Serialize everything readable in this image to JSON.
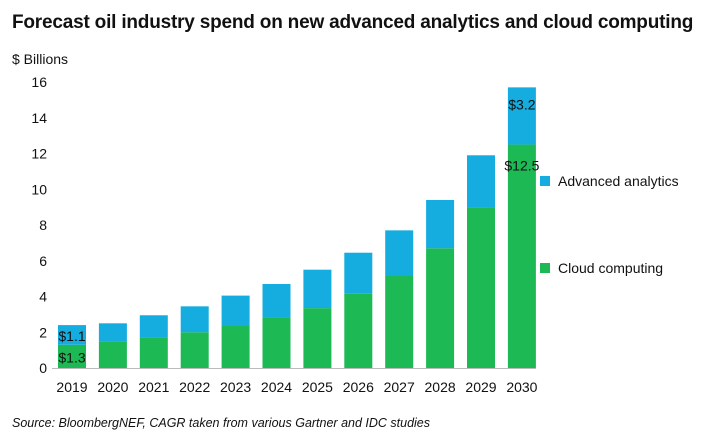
{
  "title": "Forecast oil industry spend on new advanced analytics and cloud computing",
  "source": "Source: BloombergNEF, CAGR taken from various Gartner and IDC studies",
  "colors": {
    "cloud": "#1db954",
    "analytics": "#15acdf"
  },
  "chart_data": {
    "type": "bar",
    "stacked": true,
    "title": "Forecast oil industry spend on new advanced analytics and cloud computing",
    "ylabel": "$ Billions",
    "xlabel": "",
    "ylim": [
      0,
      16
    ],
    "yticks": [
      0,
      2,
      4,
      6,
      8,
      10,
      12,
      14,
      16
    ],
    "categories": [
      "2019",
      "2020",
      "2021",
      "2022",
      "2023",
      "2024",
      "2025",
      "2026",
      "2027",
      "2028",
      "2029",
      "2030"
    ],
    "grid": false,
    "legend_position": "right",
    "series": [
      {
        "name": "Cloud computing",
        "color": "#1db954",
        "values": [
          1.3,
          1.5,
          1.7,
          2.0,
          2.35,
          2.8,
          3.35,
          4.15,
          5.2,
          6.7,
          9.0,
          12.5
        ]
      },
      {
        "name": "Advanced analytics",
        "color": "#15acdf",
        "values": [
          1.1,
          1.0,
          1.25,
          1.45,
          1.7,
          1.9,
          2.15,
          2.3,
          2.5,
          2.7,
          2.9,
          3.2
        ]
      }
    ],
    "data_labels": [
      {
        "series": "Cloud computing",
        "category": "2019",
        "text": "$1.3"
      },
      {
        "series": "Advanced analytics",
        "category": "2019",
        "text": "$1.1"
      },
      {
        "series": "Cloud computing",
        "category": "2030",
        "text": "$12.5"
      },
      {
        "series": "Advanced analytics",
        "category": "2030",
        "text": "$3.2"
      }
    ]
  }
}
